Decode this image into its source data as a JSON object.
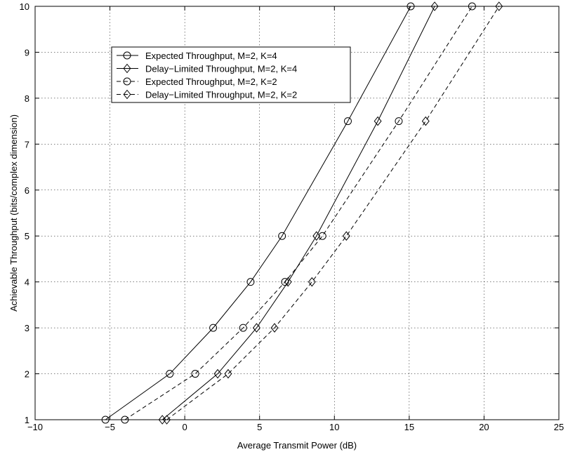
{
  "chart_data": {
    "type": "line",
    "title": "",
    "xlabel": "Average Transmit Power (dB)",
    "ylabel": "Achievable Throughput (bits/complex dimension)",
    "xlim": [
      -10,
      25
    ],
    "ylim": [
      1,
      10
    ],
    "xticks": [
      -10,
      -5,
      0,
      5,
      10,
      15,
      20,
      25
    ],
    "yticks": [
      1,
      2,
      3,
      4,
      5,
      6,
      7,
      8,
      9,
      10
    ],
    "grid": true,
    "legend_position": "top-left",
    "series": [
      {
        "name": "Expected Throughput, M=2, K=4",
        "marker": "circle",
        "line_style": "solid",
        "color": "#000000",
        "x": [
          -5.3,
          -1.0,
          1.9,
          4.4,
          6.5,
          10.9,
          15.1
        ],
        "y": [
          1,
          2,
          3,
          4,
          5,
          7.5,
          10
        ]
      },
      {
        "name": "Delay-Limited Throughput, M=2, K=4",
        "marker": "diamond",
        "line_style": "solid",
        "color": "#000000",
        "x": [
          -1.5,
          2.2,
          4.8,
          6.9,
          8.8,
          12.9,
          16.7
        ],
        "y": [
          1,
          2,
          3,
          4,
          5,
          7.5,
          10
        ]
      },
      {
        "name": "Expected Throughput, M=2, K=2",
        "marker": "circle",
        "line_style": "dashed",
        "color": "#000000",
        "x": [
          -4.0,
          0.7,
          3.9,
          6.7,
          9.2,
          14.3,
          19.2
        ],
        "y": [
          1,
          2,
          3,
          4,
          5,
          7.5,
          10
        ]
      },
      {
        "name": "Delay-Limited Throughput, M=2, K=2",
        "marker": "diamond",
        "line_style": "dashed",
        "color": "#000000",
        "x": [
          -1.2,
          2.9,
          6.0,
          8.5,
          10.8,
          16.1,
          21.0
        ],
        "y": [
          1,
          2,
          3,
          4,
          5,
          7.5,
          10
        ]
      }
    ]
  }
}
